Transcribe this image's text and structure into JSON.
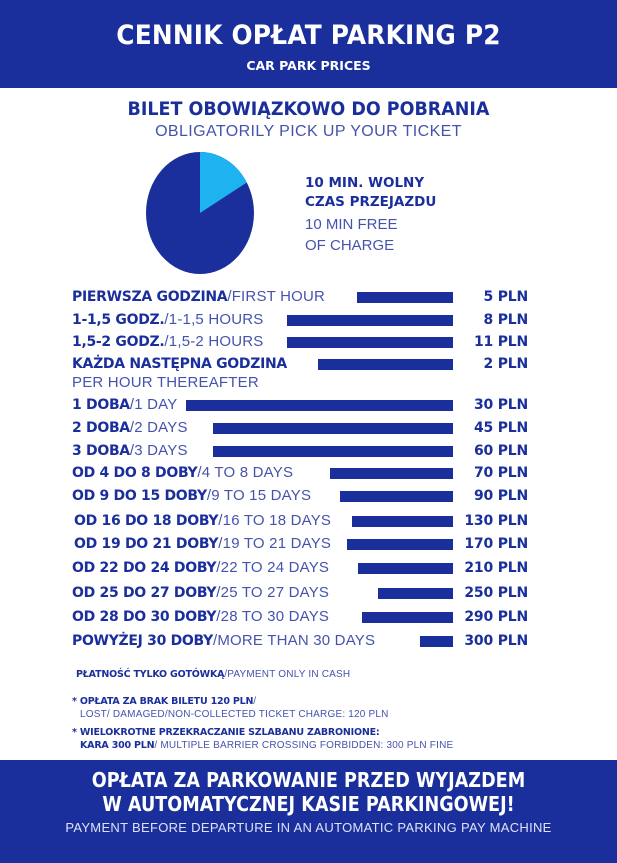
{
  "header": {
    "title": "CENNIK OPŁAT PARKING P2",
    "subtitle": "CAR PARK PRICES"
  },
  "ticket": {
    "pl": "BILET OBOWIĄZKOWO DO POBRANIA",
    "en": "OBLIGATORILY PICK UP YOUR TICKET"
  },
  "free_time": {
    "pl_line1": "10 MIN. WOLNY",
    "pl_line2": "CZAS PRZEJAZDU",
    "en_line1": "10 MIN FREE",
    "en_line2": "OF CHARGE",
    "pie_fraction": 0.1667,
    "colors": {
      "main": "#1a2f9c",
      "slice": "#1fb2f0"
    }
  },
  "prices": [
    {
      "pl": "PIERWSZA GODZINA",
      "en": "/FIRST HOUR",
      "price": "5 PLN"
    },
    {
      "pl": "1-1,5 GODZ.",
      "en": "/1-1,5 HOURS",
      "price": "8 PLN"
    },
    {
      "pl": "1,5-2 GODZ.",
      "en": "/1,5-2 HOURS",
      "price": "11 PLN"
    },
    {
      "pl": "KAŻDA NASTĘPNA GODZINA",
      "en": "",
      "sub": "PER HOUR THEREAFTER",
      "price": "2 PLN"
    },
    {
      "pl": "1 DOBA",
      "en": "/1 DAY",
      "price": "30 PLN"
    },
    {
      "pl": "2 DOBA",
      "en": "/2 DAYS",
      "price": "45 PLN"
    },
    {
      "pl": "3 DOBA",
      "en": "/3 DAYS",
      "price": "60 PLN"
    },
    {
      "pl": "OD 4 DO 8 DOBY",
      "en": "/4 TO 8 DAYS",
      "price": "70 PLN"
    },
    {
      "pl": "OD 9 DO 15 DOBY",
      "en": "/9 TO 15 DAYS",
      "price": "90 PLN"
    },
    {
      "pl": "OD 16 DO 18 DOBY",
      "en": "/16 TO 18 DAYS",
      "price": "130 PLN"
    },
    {
      "pl": "OD 19 DO 21 DOBY",
      "en": "/19 TO 21 DAYS",
      "price": "170 PLN"
    },
    {
      "pl": "OD 22 DO 24 DOBY",
      "en": "/22 TO 24 DAYS",
      "price": "210 PLN"
    },
    {
      "pl": "OD 25 DO 27 DOBY",
      "en": "/25 TO 27 DAYS",
      "price": "250 PLN"
    },
    {
      "pl": "OD 28 DO 30 DOBY",
      "en": "/28 TO 30 DAYS",
      "price": "290 PLN"
    },
    {
      "pl": "POWYŻEJ 30 DOBY",
      "en": "/MORE THAN 30 DAYS",
      "price": "300 PLN"
    }
  ],
  "notes": {
    "cash_pl": "PŁATNOŚĆ TYLKO GOTÓWKĄ",
    "cash_en": "/PAYMENT ONLY IN CASH",
    "lost_pl": "* OPŁATA ZA BRAK BILETU 120 PLN",
    "lost_slash": "/",
    "lost_en": "LOST/ DAMAGED/NON-COLLECTED TICKET CHARGE: 120 PLN",
    "barrier_pl": "* WIELOKROTNE PRZEKRACZANIE SZLABANU ZABRONIONE:",
    "barrier_fine_pl": "KARA 300 PLN",
    "barrier_en": "/ MULTIPLE BARRIER CROSSING FORBIDDEN: 300 PLN FINE"
  },
  "footer": {
    "line1": "OPŁATA ZA PARKOWANIE PRZED WYJAZDEM",
    "line2": "W AUTOMATYCZNEJ KASIE PARKINGOWEJ!",
    "line3": "PAYMENT BEFORE DEPARTURE IN AN AUTOMATIC PARKING PAY MACHINE"
  },
  "colors": {
    "brand": "#1a2f9c",
    "accent": "#1fb2f0",
    "white": "#ffffff"
  }
}
